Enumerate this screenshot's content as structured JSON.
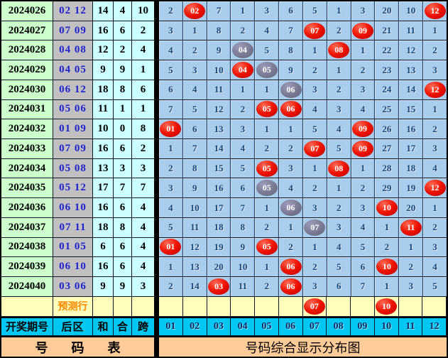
{
  "chart_data": {
    "type": "table",
    "title_left": "号 码 表",
    "title_right": "号码综合显示分布图",
    "left_headers": [
      "开奖期号",
      "后区",
      "和",
      "合",
      "跨"
    ],
    "number_headers": [
      "01",
      "02",
      "03",
      "04",
      "05",
      "06",
      "07",
      "08",
      "09",
      "10",
      "11",
      "12"
    ],
    "prediction_label": "预测行",
    "rows": [
      {
        "period": "2024026",
        "back": "02 12",
        "sum": "14",
        "he": "4",
        "kua": "10",
        "cells": [
          "2",
          {
            "v": "02",
            "c": "red"
          },
          "7",
          "1",
          "3",
          "6",
          "5",
          "1",
          "3",
          "20",
          "10",
          {
            "v": "12",
            "c": "red"
          }
        ]
      },
      {
        "period": "2024027",
        "back": "07 09",
        "sum": "16",
        "he": "6",
        "kua": "2",
        "cells": [
          "3",
          "1",
          "8",
          "2",
          "4",
          "7",
          {
            "v": "07",
            "c": "red"
          },
          "2",
          {
            "v": "09",
            "c": "red"
          },
          "21",
          "11",
          "1"
        ]
      },
      {
        "period": "2024028",
        "back": "04 08",
        "sum": "12",
        "he": "2",
        "kua": "4",
        "cells": [
          "4",
          "2",
          "9",
          {
            "v": "04",
            "c": "gray"
          },
          "5",
          "8",
          "1",
          {
            "v": "08",
            "c": "red"
          },
          "1",
          "22",
          "12",
          "2"
        ]
      },
      {
        "period": "2024029",
        "back": "04 05",
        "sum": "9",
        "he": "9",
        "kua": "1",
        "cells": [
          "5",
          "3",
          "10",
          {
            "v": "04",
            "c": "red"
          },
          {
            "v": "05",
            "c": "gray"
          },
          "9",
          "2",
          "1",
          "2",
          "23",
          "13",
          "3"
        ]
      },
      {
        "period": "2024030",
        "back": "06 12",
        "sum": "18",
        "he": "8",
        "kua": "6",
        "cells": [
          "6",
          "4",
          "11",
          "1",
          "1",
          {
            "v": "06",
            "c": "gray"
          },
          "3",
          "2",
          "3",
          "24",
          "14",
          {
            "v": "12",
            "c": "red"
          }
        ]
      },
      {
        "period": "2024031",
        "back": "05 06",
        "sum": "11",
        "he": "1",
        "kua": "1",
        "cells": [
          "7",
          "5",
          "12",
          "2",
          {
            "v": "05",
            "c": "red"
          },
          {
            "v": "06",
            "c": "red"
          },
          "4",
          "3",
          "4",
          "25",
          "15",
          "1"
        ]
      },
      {
        "period": "2024032",
        "back": "01 09",
        "sum": "10",
        "he": "0",
        "kua": "8",
        "cells": [
          {
            "v": "01",
            "c": "red"
          },
          "6",
          "13",
          "3",
          "1",
          "1",
          "5",
          "4",
          {
            "v": "09",
            "c": "red"
          },
          "26",
          "16",
          "2"
        ]
      },
      {
        "period": "2024033",
        "back": "07 09",
        "sum": "16",
        "he": "6",
        "kua": "2",
        "cells": [
          "1",
          "7",
          "14",
          "4",
          "2",
          "2",
          {
            "v": "07",
            "c": "red"
          },
          "5",
          {
            "v": "09",
            "c": "red"
          },
          "27",
          "17",
          "3"
        ]
      },
      {
        "period": "2024034",
        "back": "05 08",
        "sum": "13",
        "he": "3",
        "kua": "3",
        "cells": [
          "2",
          "8",
          "15",
          "5",
          {
            "v": "05",
            "c": "red"
          },
          "3",
          "1",
          {
            "v": "08",
            "c": "red"
          },
          "1",
          "28",
          "18",
          "4"
        ]
      },
      {
        "period": "2024035",
        "back": "05 12",
        "sum": "17",
        "he": "7",
        "kua": "7",
        "cells": [
          "3",
          "9",
          "16",
          "6",
          {
            "v": "05",
            "c": "gray"
          },
          "4",
          "2",
          "1",
          "2",
          "29",
          "19",
          {
            "v": "12",
            "c": "red"
          }
        ]
      },
      {
        "period": "2024036",
        "back": "06 10",
        "sum": "16",
        "he": "6",
        "kua": "4",
        "cells": [
          "4",
          "10",
          "17",
          "7",
          "1",
          {
            "v": "06",
            "c": "gray"
          },
          "3",
          "2",
          "3",
          {
            "v": "10",
            "c": "red"
          },
          "20",
          "1"
        ]
      },
      {
        "period": "2024037",
        "back": "07 11",
        "sum": "18",
        "he": "8",
        "kua": "4",
        "cells": [
          "5",
          "11",
          "18",
          "8",
          "2",
          "1",
          {
            "v": "07",
            "c": "gray"
          },
          "3",
          "4",
          "1",
          {
            "v": "11",
            "c": "red"
          },
          "2"
        ]
      },
      {
        "period": "2024038",
        "back": "01 05",
        "sum": "6",
        "he": "6",
        "kua": "4",
        "cells": [
          {
            "v": "01",
            "c": "red"
          },
          "12",
          "19",
          "9",
          {
            "v": "05",
            "c": "red"
          },
          "2",
          "1",
          "4",
          "5",
          "2",
          "1",
          "3"
        ]
      },
      {
        "period": "2024039",
        "back": "06 10",
        "sum": "16",
        "he": "6",
        "kua": "4",
        "cells": [
          "1",
          "13",
          "20",
          "10",
          "1",
          {
            "v": "06",
            "c": "red"
          },
          "2",
          "5",
          "6",
          {
            "v": "10",
            "c": "red"
          },
          "2",
          "4"
        ]
      },
      {
        "period": "2024040",
        "back": "03 06",
        "sum": "9",
        "he": "9",
        "kua": "3",
        "cells": [
          "2",
          "14",
          {
            "v": "03",
            "c": "red"
          },
          "11",
          "2",
          {
            "v": "06",
            "c": "red"
          },
          "3",
          "6",
          "7",
          "1",
          "3",
          "5"
        ]
      }
    ],
    "prediction_cells": [
      "",
      "",
      "",
      "",
      "",
      "",
      {
        "v": "07",
        "c": "red"
      },
      "",
      "",
      {
        "v": "10",
        "c": "red"
      },
      "",
      ""
    ]
  },
  "colors": {
    "hit_red": "#ee1100",
    "hit_gray": "#76768e",
    "grid_cell": "#a9cdec",
    "period_col": "#ccffcc",
    "back_col": "#c0c0c0",
    "sum_cols": "#ccffff",
    "prediction_row": "#ffffbb",
    "header_row": "#00c8f2",
    "title_row": "#ffcc99",
    "back_text": "#2222cc"
  }
}
